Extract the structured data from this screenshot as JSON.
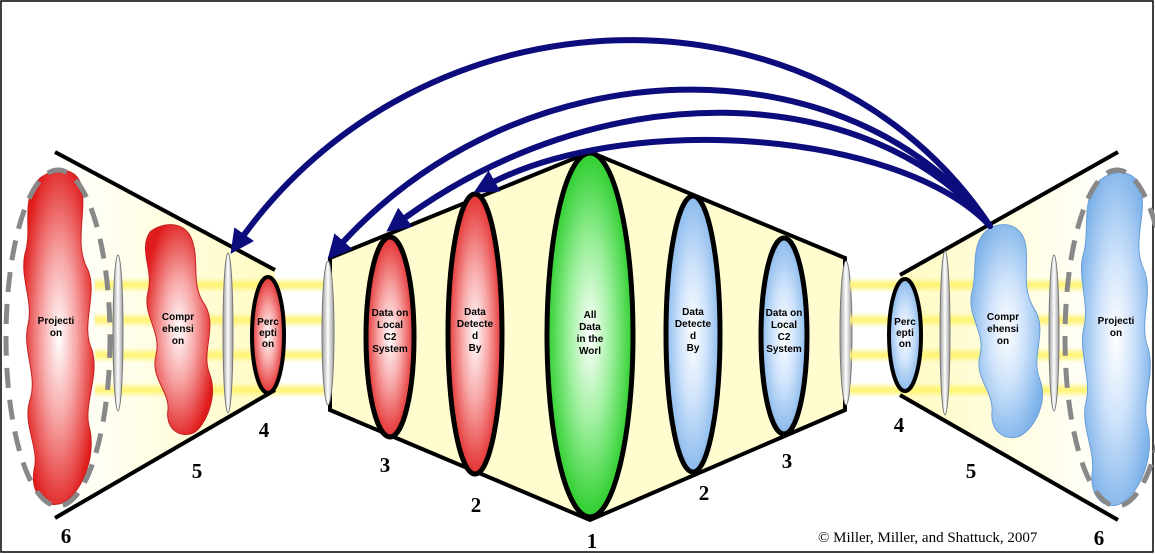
{
  "diagram": {
    "left_labels": {
      "projection": [
        "Projecti",
        "on"
      ],
      "comprehension": [
        "Compr",
        "ehensi",
        "on"
      ],
      "perception": [
        "Perc",
        "epti",
        "on"
      ],
      "data_local": [
        "Data on",
        "Local",
        "C2",
        "System"
      ],
      "data_detected": [
        "Data",
        "Detecte",
        "d",
        "By"
      ]
    },
    "center_label": [
      "All",
      "Data",
      "in the",
      "Worl"
    ],
    "right_labels": {
      "data_detected": [
        "Data",
        "Detecte",
        "d",
        "By"
      ],
      "data_local": [
        "Data on",
        "Local",
        "C2",
        "System"
      ],
      "perception": [
        "Perc",
        "epti",
        "on"
      ],
      "comprehension": [
        "Compr",
        "ehensi",
        "on"
      ],
      "projection": [
        "Projecti",
        "on"
      ]
    },
    "numbers": {
      "n1": "1",
      "n2_left": "2",
      "n2_right": "2",
      "n3_left": "3",
      "n3_right": "3",
      "n4_left": "4",
      "n4_right": "4",
      "n5_left": "5",
      "n5_right": "5",
      "n6_left": "6",
      "n6_right": "6"
    },
    "copyright": "© Miller, Miller, and Shattuck, 2007",
    "colors": {
      "red_ellipse": "#e8201d",
      "blue_ellipse": "#8bbbec",
      "green_ellipse": "#22cc22",
      "arrow": "#0c0c7c",
      "cone_fill": "#fffdd0",
      "beam": "#fff06a",
      "dashed_oval": "#888888"
    }
  }
}
